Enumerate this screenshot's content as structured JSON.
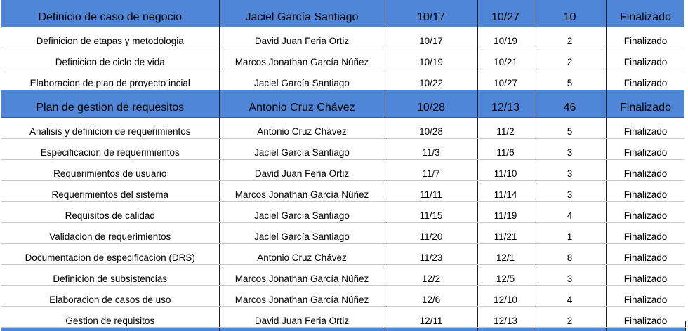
{
  "phase1": {
    "name": "Definicio de caso de negocio",
    "owner": "Jaciel García Santiago",
    "start": "10/17",
    "end": "10/27",
    "days": "10",
    "status": "Finalizado"
  },
  "phase1_tasks": [
    {
      "name": "Definicion de etapas y metodologia",
      "owner": "David Juan Feria Ortiz",
      "start": "10/17",
      "end": "10/19",
      "days": "2",
      "status": "Finalizado"
    },
    {
      "name": "Definicion de ciclo de vida",
      "owner": "Marcos Jonathan García Núñez",
      "start": "10/19",
      "end": "10/21",
      "days": "2",
      "status": "Finalizado"
    },
    {
      "name": "Elaboracion de plan de proyecto incial",
      "owner": "Jaciel García Santiago",
      "start": "10/22",
      "end": "10/27",
      "days": "5",
      "status": "Finalizado"
    }
  ],
  "phase2": {
    "name": "Plan de gestion de requesitos",
    "owner": "Antonio Cruz Chávez",
    "start": "10/28",
    "end": "12/13",
    "days": "46",
    "status": "Finalizado"
  },
  "phase2_tasks": [
    {
      "name": "Analisis y definicion de requerimientos",
      "owner": "Antonio Cruz Chávez",
      "start": "10/28",
      "end": "11/2",
      "days": "5",
      "status": "Finalizado"
    },
    {
      "name": "Especificacion de requerimientos",
      "owner": "Jaciel García Santiago",
      "start": "11/3",
      "end": "11/6",
      "days": "3",
      "status": "Finalizado"
    },
    {
      "name": "Requerimientos de usuario",
      "owner": "David Juan Feria Ortiz",
      "start": "11/7",
      "end": "11/10",
      "days": "3",
      "status": "Finalizado"
    },
    {
      "name": "Requerimientos del sistema",
      "owner": "Marcos Jonathan García Núñez",
      "start": "11/11",
      "end": "11/14",
      "days": "3",
      "status": "Finalizado"
    },
    {
      "name": "Requisitos de calidad",
      "owner": "Jaciel García Santiago",
      "start": "11/15",
      "end": "11/19",
      "days": "4",
      "status": "Finalizado"
    },
    {
      "name": "Validacion de requerimientos",
      "owner": "Jaciel García Santiago",
      "start": "11/20",
      "end": "11/21",
      "days": "1",
      "status": "Finalizado"
    },
    {
      "name": "Documentacion de especificacion (DRS)",
      "owner": "Antonio Cruz Chávez",
      "start": "11/23",
      "end": "12/1",
      "days": "8",
      "status": "Finalizado"
    },
    {
      "name": "Definicion de subsistencias",
      "owner": "Marcos Jonathan García Núñez",
      "start": "12/2",
      "end": "12/5",
      "days": "3",
      "status": "Finalizado"
    },
    {
      "name": "Elaboracion de casos de uso",
      "owner": "Marcos Jonathan García Núñez",
      "start": "12/6",
      "end": "12/10",
      "days": "4",
      "status": "Finalizado"
    },
    {
      "name": "Gestion de requisitos",
      "owner": "David Juan Feria Ortiz",
      "start": "12/11",
      "end": "12/13",
      "days": "2",
      "status": "Finalizado"
    }
  ],
  "colors": {
    "phase_fill": "#4f86d8",
    "grid_line": "#c9c9c9",
    "column_line": "#1f1f1f"
  }
}
